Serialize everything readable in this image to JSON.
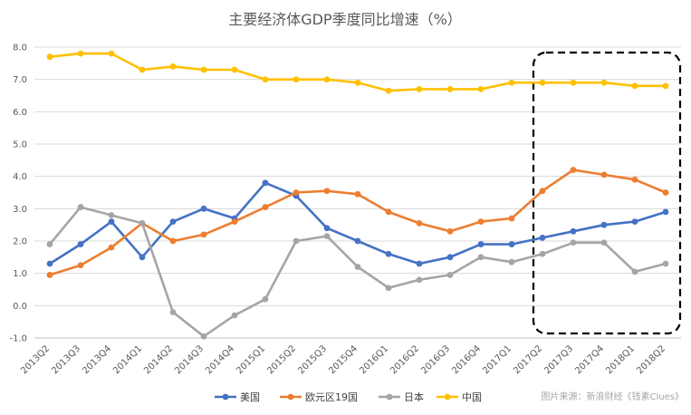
{
  "chart_data": {
    "type": "line",
    "title": "主要经济体GDP季度同比增速（%）",
    "xlabel": "",
    "ylabel": "",
    "ylim": [
      -1.0,
      8.0
    ],
    "yticks": [
      "-1.0",
      "0.0",
      "1.0",
      "2.0",
      "3.0",
      "4.0",
      "5.0",
      "6.0",
      "7.0",
      "8.0"
    ],
    "grid": "horizontal",
    "legend_position": "bottom",
    "categories": [
      "2013Q2",
      "2013Q3",
      "2013Q4",
      "2014Q1",
      "2014Q2",
      "2014Q3",
      "2014Q4",
      "2015Q1",
      "2015Q2",
      "2015Q3",
      "2015Q4",
      "2016Q1",
      "2016Q2",
      "2016Q3",
      "2016Q4",
      "2017Q1",
      "2017Q2",
      "2017Q3",
      "2017Q4",
      "2018Q1",
      "2018Q2"
    ],
    "series": [
      {
        "name": "美国",
        "color": "#4472c4",
        "values": [
          1.3,
          1.9,
          2.6,
          1.5,
          2.6,
          3.0,
          2.7,
          3.8,
          3.4,
          2.4,
          2.0,
          1.6,
          1.3,
          1.5,
          1.9,
          1.9,
          2.1,
          2.3,
          2.5,
          2.6,
          2.9
        ]
      },
      {
        "name": "欧元区19国",
        "color": "#ed7d31",
        "values": [
          0.95,
          1.25,
          1.8,
          2.55,
          2.0,
          2.2,
          2.6,
          3.05,
          3.5,
          3.55,
          3.45,
          2.9,
          2.55,
          2.3,
          2.6,
          2.7,
          3.55,
          4.2,
          4.05,
          3.9,
          3.5
        ]
      },
      {
        "name": "日本",
        "color": "#a5a5a5",
        "values": [
          1.9,
          3.05,
          2.8,
          2.55,
          -0.2,
          -0.95,
          -0.3,
          0.2,
          2.0,
          2.15,
          1.2,
          0.55,
          0.8,
          0.95,
          1.5,
          1.35,
          1.6,
          1.95,
          1.95,
          1.05,
          1.3
        ]
      },
      {
        "name": "中国",
        "color": "#ffc000",
        "values": [
          7.7,
          7.8,
          7.8,
          7.3,
          7.4,
          7.3,
          7.3,
          7.0,
          7.0,
          7.0,
          6.9,
          6.65,
          6.7,
          6.7,
          6.7,
          6.9,
          6.9,
          6.9,
          6.9,
          6.8,
          6.8
        ]
      }
    ],
    "highlight_range": [
      "2017Q2",
      "2018Q2"
    ],
    "source_note": "图片来源：新浪财经《钱素Clues》"
  }
}
